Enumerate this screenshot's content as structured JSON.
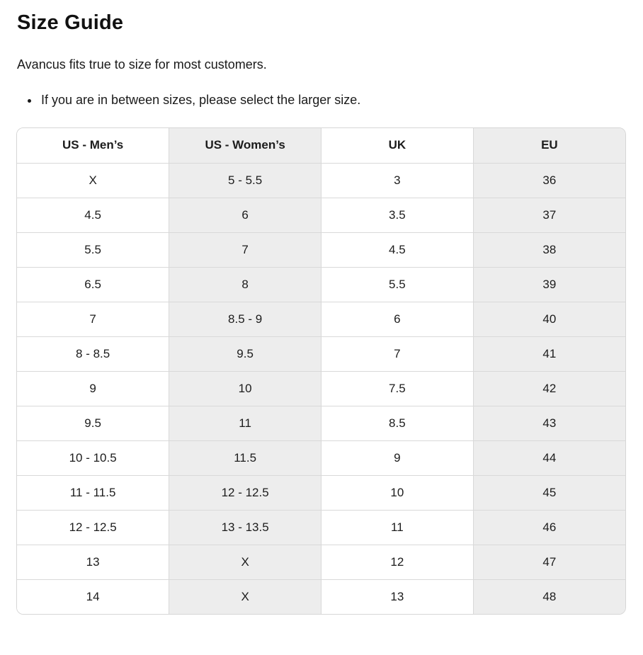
{
  "page": {
    "title": "Size Guide",
    "intro": "Avancus fits true to size for most customers.",
    "notes": [
      "If you are in between sizes, please select the larger size."
    ]
  },
  "table": {
    "columns": [
      "US - Men’s",
      "US - Women’s",
      "UK",
      "EU"
    ],
    "shaded_columns": [
      1,
      3
    ],
    "rows": [
      [
        "X",
        "5 - 5.5",
        "3",
        "36"
      ],
      [
        "4.5",
        "6",
        "3.5",
        "37"
      ],
      [
        "5.5",
        "7",
        "4.5",
        "38"
      ],
      [
        "6.5",
        "8",
        "5.5",
        "39"
      ],
      [
        "7",
        "8.5 - 9",
        "6",
        "40"
      ],
      [
        "8 - 8.5",
        "9.5",
        "7",
        "41"
      ],
      [
        "9",
        "10",
        "7.5",
        "42"
      ],
      [
        "9.5",
        "11",
        "8.5",
        "43"
      ],
      [
        "10 - 10.5",
        "11.5",
        "9",
        "44"
      ],
      [
        "11 - 11.5",
        "12 - 12.5",
        "10",
        "45"
      ],
      [
        "12 - 12.5",
        "13 - 13.5",
        "11",
        "46"
      ],
      [
        "13",
        "X",
        "12",
        "47"
      ],
      [
        "14",
        "X",
        "13",
        "48"
      ]
    ]
  },
  "colors": {
    "shaded_column_bg": "#ededed",
    "table_border": "#d9d9d9",
    "text": "#1a1a1a",
    "background": "#ffffff"
  }
}
